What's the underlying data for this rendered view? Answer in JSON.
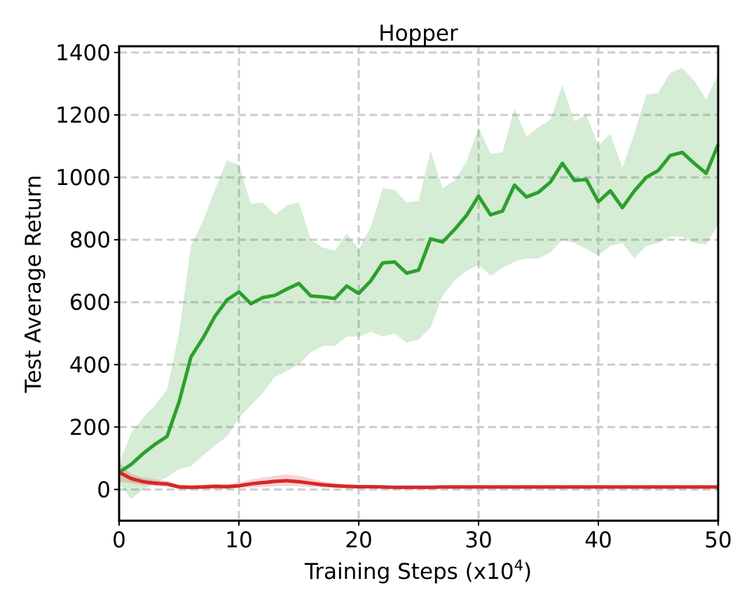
{
  "chart_data": {
    "type": "line",
    "title": "Hopper",
    "xlabel": [
      "Training Steps (x10",
      "4",
      ")"
    ],
    "ylabel": "Test Average Return",
    "xlim": [
      0,
      50
    ],
    "ylim": [
      -100,
      1420
    ],
    "xticks": [
      0,
      10,
      20,
      30,
      40,
      50
    ],
    "yticks": [
      0,
      200,
      400,
      600,
      800,
      1000,
      1200,
      1400
    ],
    "grid": true,
    "x": [
      0,
      1,
      2,
      3,
      4,
      5,
      6,
      7,
      8,
      9,
      10,
      11,
      12,
      13,
      14,
      15,
      16,
      17,
      18,
      19,
      20,
      21,
      22,
      23,
      24,
      25,
      26,
      27,
      28,
      29,
      30,
      31,
      32,
      33,
      34,
      35,
      36,
      37,
      38,
      39,
      40,
      41,
      42,
      43,
      44,
      45,
      46,
      47,
      48,
      49,
      50
    ],
    "series": [
      {
        "color": "#2ca02c",
        "values": [
          55,
          80,
          115,
          145,
          170,
          280,
          425,
          485,
          555,
          607,
          633,
          595,
          615,
          622,
          642,
          660,
          620,
          617,
          612,
          652,
          628,
          668,
          726,
          729,
          693,
          703,
          803,
          793,
          833,
          878,
          940,
          880,
          892,
          975,
          937,
          952,
          985,
          1045,
          990,
          993,
          922,
          957,
          903,
          956,
          1000,
          1022,
          1070,
          1080,
          1045,
          1013,
          1105
        ],
        "upper": [
          85,
          180,
          230,
          270,
          320,
          500,
          780,
          860,
          960,
          1055,
          1040,
          915,
          920,
          880,
          910,
          920,
          800,
          775,
          765,
          820,
          770,
          840,
          965,
          960,
          920,
          925,
          1085,
          965,
          990,
          1050,
          1160,
          1075,
          1080,
          1220,
          1130,
          1160,
          1185,
          1295,
          1180,
          1200,
          1100,
          1140,
          1030,
          1140,
          1265,
          1270,
          1335,
          1350,
          1310,
          1250,
          1330
        ],
        "lower": [
          20,
          -30,
          0,
          20,
          40,
          65,
          75,
          110,
          140,
          170,
          230,
          270,
          310,
          360,
          380,
          400,
          440,
          460,
          460,
          490,
          490,
          505,
          490,
          500,
          470,
          480,
          520,
          620,
          670,
          700,
          720,
          685,
          710,
          730,
          740,
          740,
          760,
          800,
          790,
          770,
          750,
          780,
          790,
          740,
          780,
          790,
          810,
          810,
          790,
          785,
          850
        ]
      },
      {
        "color": "#d62728",
        "values": [
          55,
          35,
          25,
          20,
          18,
          8,
          7,
          8,
          10,
          9,
          12,
          18,
          22,
          26,
          28,
          25,
          20,
          15,
          12,
          10,
          9,
          9,
          8,
          7,
          7,
          7,
          7,
          8,
          8,
          8,
          8,
          8,
          8,
          8,
          8,
          8,
          8,
          8,
          8,
          8,
          8,
          8,
          8,
          8,
          8,
          8,
          8,
          8,
          8,
          8,
          8
        ],
        "upper": [
          85,
          50,
          38,
          32,
          28,
          16,
          14,
          15,
          18,
          17,
          22,
          32,
          38,
          44,
          48,
          44,
          35,
          26,
          20,
          17,
          15,
          14,
          13,
          12,
          12,
          12,
          12,
          13,
          13,
          13,
          13,
          13,
          13,
          13,
          13,
          13,
          13,
          13,
          13,
          13,
          13,
          13,
          13,
          13,
          13,
          13,
          13,
          13,
          13,
          13,
          13
        ],
        "lower": [
          25,
          20,
          14,
          10,
          8,
          2,
          1,
          2,
          3,
          2,
          4,
          6,
          8,
          10,
          12,
          10,
          8,
          6,
          5,
          4,
          4,
          4,
          3,
          3,
          3,
          3,
          3,
          4,
          4,
          4,
          4,
          4,
          4,
          4,
          4,
          4,
          4,
          4,
          4,
          4,
          4,
          4,
          4,
          4,
          4,
          4,
          4,
          4,
          4,
          4,
          4
        ]
      }
    ]
  }
}
